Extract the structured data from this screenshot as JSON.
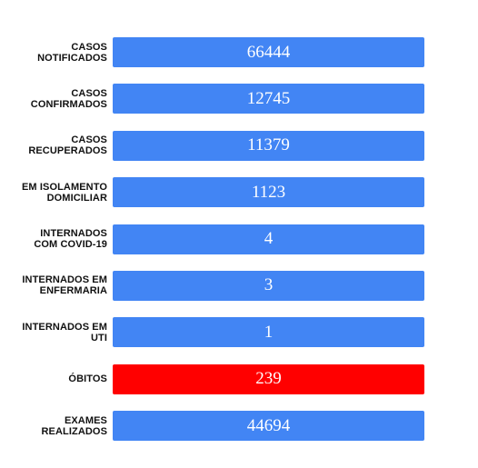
{
  "colors": {
    "default_bar": "#4285f4",
    "alert_bar": "#ff0000",
    "label_text": "#111111",
    "value_text": "#ffffff"
  },
  "rows": [
    {
      "label_lines": [
        "CASOS",
        "NOTIFICADOS"
      ],
      "value": "66444",
      "bar_color": "#4285f4"
    },
    {
      "label_lines": [
        "CASOS",
        "CONFIRMADOS"
      ],
      "value": "12745",
      "bar_color": "#4285f4"
    },
    {
      "label_lines": [
        "CASOS",
        "RECUPERADOS"
      ],
      "value": "11379",
      "bar_color": "#4285f4"
    },
    {
      "label_lines": [
        "EM ISOLAMENTO",
        "DOMICILIAR"
      ],
      "value": "1123",
      "bar_color": "#4285f4"
    },
    {
      "label_lines": [
        "INTERNADOS",
        "COM COVID-19"
      ],
      "value": "4",
      "bar_color": "#4285f4"
    },
    {
      "label_lines": [
        "INTERNADOS EM",
        "ENFERMARIA"
      ],
      "value": "3",
      "bar_color": "#4285f4"
    },
    {
      "label_lines": [
        "INTERNADOS EM",
        "UTI"
      ],
      "value": "1",
      "bar_color": "#4285f4"
    },
    {
      "label_lines": [
        "ÓBITOS"
      ],
      "value": "239",
      "bar_color": "#ff0000"
    },
    {
      "label_lines": [
        "EXAMES",
        "REALIZADOS"
      ],
      "value": "44694",
      "bar_color": "#4285f4"
    }
  ]
}
